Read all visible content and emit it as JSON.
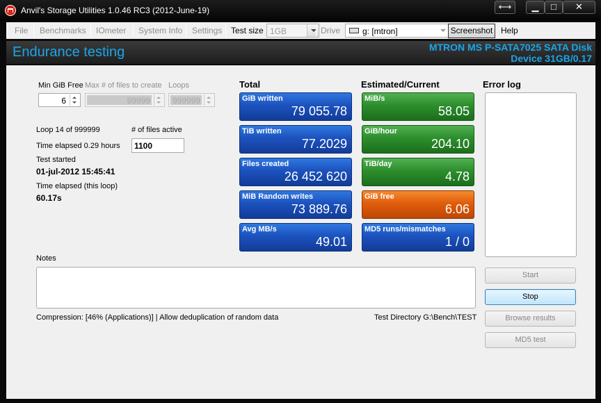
{
  "window": {
    "title": "Anvil's Storage Utilities 1.0.46 RC3 (2012-June-19)"
  },
  "menu": {
    "file": "File",
    "benchmarks": "Benchmarks",
    "iometer": "IOmeter",
    "system_info": "System Info",
    "settings": "Settings",
    "test_size_label": "Test size",
    "test_size_value": "1GB",
    "drive_label": "Drive",
    "drive_value": "g: [mtron]",
    "screenshot": "Screenshot",
    "help": "Help"
  },
  "header": {
    "title": "Endurance testing",
    "device_line1": "MTRON MS P-SATA7025 SATA Disk",
    "device_line2": "Device 31GB/0.17"
  },
  "settings": {
    "min_gib_free_label": "Min GiB Free",
    "min_gib_free_value": "6",
    "max_files_label": "Max # of files to create",
    "max_files_value": "99999",
    "loops_label": "Loops",
    "loops_value": "999999"
  },
  "status": {
    "loop_text": "Loop 14 of 999999",
    "files_active_label": "# of files active",
    "files_active_value": "1100",
    "time_elapsed_text": "Time elapsed 0.29 hours",
    "test_started_label": "Test started",
    "test_started_value": "01-jul-2012 15:45:41",
    "loop_elapsed_label": "Time elapsed (this loop)",
    "loop_elapsed_value": "60.17s"
  },
  "totals": {
    "heading": "Total",
    "tiles": [
      {
        "label": "GiB written",
        "value": "79 055.78"
      },
      {
        "label": "TiB written",
        "value": "77.2029"
      },
      {
        "label": "Files created",
        "value": "26 452 620"
      },
      {
        "label": "MiB Random writes",
        "value": "73 889.76"
      },
      {
        "label": "Avg MB/s",
        "value": "49.01"
      }
    ]
  },
  "estimated": {
    "heading": "Estimated/Current",
    "tiles": [
      {
        "label": "MiB/s",
        "value": "58.05",
        "color": "#2d8e2d"
      },
      {
        "label": "GiB/hour",
        "value": "204.10",
        "color": "#2d8e2d"
      },
      {
        "label": "TiB/day",
        "value": "4.78",
        "color": "#2d8e2d"
      },
      {
        "label": "GiB free",
        "value": "6.06",
        "color": "#e05d0c"
      },
      {
        "label": "MD5 runs/mismatches",
        "value": "1 / 0",
        "color": "#1c52be"
      }
    ]
  },
  "error_log": {
    "heading": "Error log"
  },
  "notes": {
    "label": "Notes"
  },
  "footer": {
    "compression": "Compression: [46% (Applications)] | Allow deduplication of random data",
    "test_directory": "Test Directory G:\\Bench\\TEST"
  },
  "buttons": {
    "start": "Start",
    "stop": "Stop",
    "browse_results": "Browse results",
    "md5_test": "MD5 test"
  },
  "colors": {
    "accent": "#1aa6e8",
    "tile_blue": "#1c52be",
    "tile_green": "#2d8e2d",
    "tile_orange": "#e05d0c"
  }
}
